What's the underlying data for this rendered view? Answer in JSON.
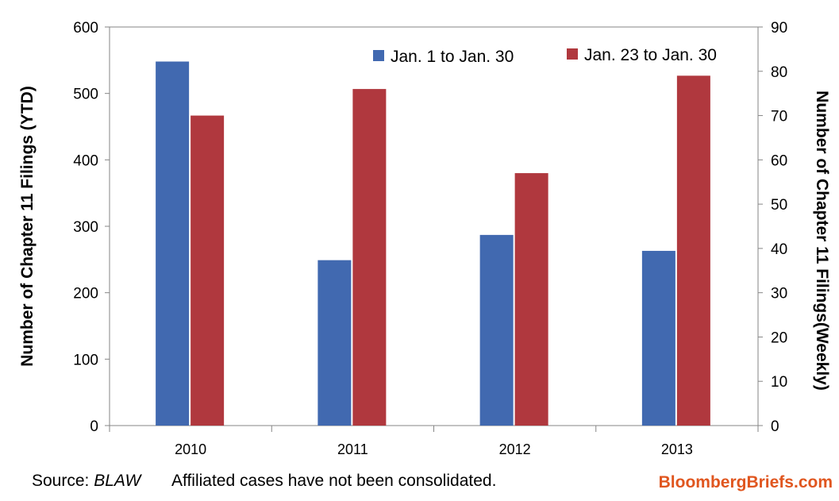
{
  "chart_data": {
    "type": "bar",
    "categories": [
      "2010",
      "2011",
      "2012",
      "2013"
    ],
    "series": [
      {
        "name": "Jan. 1 to Jan. 30",
        "axis": "left",
        "values": [
          548,
          249,
          287,
          263
        ],
        "color": "#4169b0"
      },
      {
        "name": "Jan. 23 to Jan. 30",
        "axis": "right",
        "values": [
          70,
          76,
          57,
          79
        ],
        "color": "#b0383e"
      }
    ],
    "ylabel": "Number of Chapter 11 Filings (YTD)",
    "ylabel_right": "Number of Chapter 11 Filings(Weekly)",
    "ylim": [
      0,
      600
    ],
    "ylim_right": [
      0,
      90
    ],
    "yticks": [
      0,
      100,
      200,
      300,
      400,
      500,
      600
    ],
    "yticks_right": [
      0,
      10,
      20,
      30,
      40,
      50,
      60,
      70,
      80,
      90
    ],
    "grid": false,
    "legend_position": "top-right"
  },
  "footer": {
    "source_prefix": "Source: ",
    "source_name": "BLAW",
    "note": "Affiliated cases have not been consolidated.",
    "brand": "BloombergBriefs.com"
  }
}
